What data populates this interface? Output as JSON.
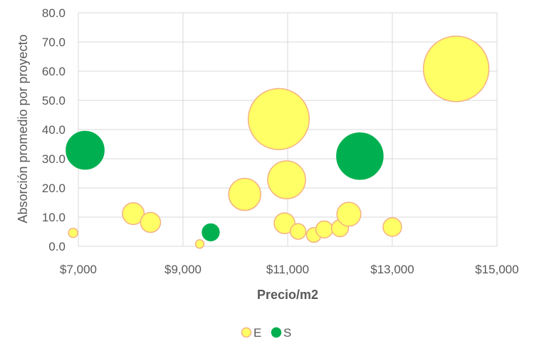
{
  "chart_data": {
    "type": "bubble",
    "xlabel": "Precio/m2",
    "ylabel": "Absorción promedio por proyecto",
    "xlim": [
      7000,
      15000
    ],
    "ylim": [
      0,
      80
    ],
    "x_ticks": [
      7000,
      9000,
      11000,
      13000,
      15000
    ],
    "x_tick_labels": [
      "$7,000",
      "$9,000",
      "$11,000",
      "$13,000",
      "$15,000"
    ],
    "y_ticks": [
      0,
      10,
      20,
      30,
      40,
      50,
      60,
      70,
      80
    ],
    "y_tick_labels": [
      "0.0",
      "10.0",
      "20.0",
      "30.0",
      "40.0",
      "50.0",
      "60.0",
      "70.0",
      "80.0"
    ],
    "grid": true,
    "legend_position": "bottom",
    "series": [
      {
        "name": "E",
        "color": "#FFFF66",
        "stroke": "#F4B183",
        "points": [
          {
            "x": 8050,
            "y": 11.2,
            "size": 3.3
          },
          {
            "x": 8380,
            "y": 8.2,
            "size": 2.8
          },
          {
            "x": 9320,
            "y": 0.8,
            "size": 0.5
          },
          {
            "x": 10180,
            "y": 17.8,
            "size": 7.2
          },
          {
            "x": 10830,
            "y": 43.6,
            "size": 26.0
          },
          {
            "x": 10980,
            "y": 22.8,
            "size": 10.0
          },
          {
            "x": 10940,
            "y": 7.9,
            "size": 3.0
          },
          {
            "x": 11200,
            "y": 5.1,
            "size": 1.7
          },
          {
            "x": 11500,
            "y": 3.9,
            "size": 1.5
          },
          {
            "x": 11700,
            "y": 5.8,
            "size": 2.0
          },
          {
            "x": 12000,
            "y": 6.2,
            "size": 2.0
          },
          {
            "x": 12170,
            "y": 11.0,
            "size": 4.0
          },
          {
            "x": 13000,
            "y": 6.6,
            "size": 2.4
          },
          {
            "x": 14220,
            "y": 60.8,
            "size": 30.0
          },
          {
            "x": 6900,
            "y": 4.6,
            "size": 0.6
          }
        ]
      },
      {
        "name": "S",
        "color": "#00B050",
        "stroke": "#00B050",
        "points": [
          {
            "x": 7130,
            "y": 32.9,
            "size": 10.0
          },
          {
            "x": 9530,
            "y": 4.8,
            "size": 2.0
          },
          {
            "x": 12380,
            "y": 30.9,
            "size": 15.0
          }
        ]
      }
    ]
  }
}
